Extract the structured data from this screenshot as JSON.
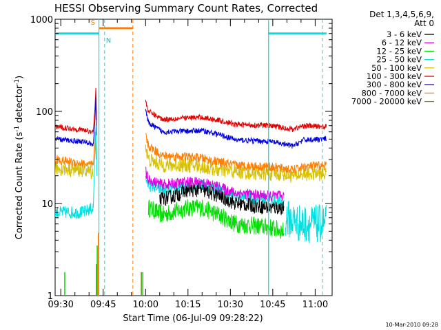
{
  "chart_data": {
    "type": "line",
    "title": "HESSI Observing Summary Count Rates, Corrected",
    "xlabel": "Start Time (06-Jul-09 09:28:22)",
    "ylabel": "Corrected Count Rate (s",
    "ylabel_sup1": "-1",
    "ylabel_mid": " detector",
    "ylabel_sup2": "-1",
    "ylabel_end": ")",
    "yscale": "log",
    "ylim": [
      1,
      1000
    ],
    "xlim_minutes": [
      -2,
      96
    ],
    "xticks": [
      {
        "label": "09:30",
        "minutes": 0
      },
      {
        "label": "09:45",
        "minutes": 15
      },
      {
        "label": "10:00",
        "minutes": 30
      },
      {
        "label": "10:15",
        "minutes": 45
      },
      {
        "label": "10:30",
        "minutes": 60
      },
      {
        "label": "10:45",
        "minutes": 75
      },
      {
        "label": "11:00",
        "minutes": 90
      }
    ],
    "yticks": [
      {
        "label": "1",
        "value": 1
      },
      {
        "label": "10",
        "value": 10
      },
      {
        "label": "100",
        "value": 100
      },
      {
        "label": "1000",
        "value": 1000
      }
    ],
    "legend": {
      "placement": "right",
      "header_line1": "Det 1,3,4,5,6,9,",
      "header_line2": "Att 0"
    },
    "series": [
      {
        "name": "3 - 6 keV",
        "color": "#000000"
      },
      {
        "name": "6 - 12 keV",
        "color": "#e000e0"
      },
      {
        "name": "12 - 25 keV",
        "color": "#00e000"
      },
      {
        "name": "25 - 50 keV",
        "color": "#00e0e0"
      },
      {
        "name": "50 - 100 keV",
        "color": "#d8c000"
      },
      {
        "name": "100 - 300 keV",
        "color": "#e00000"
      },
      {
        "name": "300 - 800 keV",
        "color": "#0000e0"
      },
      {
        "name": "800 - 7000 keV",
        "color": "#ff8000"
      },
      {
        "name": "7000 - 20000 keV",
        "color": "#808000"
      }
    ],
    "profiles": {
      "red": {
        "pre": [
          [
            -2,
            68
          ],
          [
            8,
            63
          ],
          [
            11.5,
            60
          ]
        ],
        "post": [
          [
            30,
            130
          ],
          [
            31,
            100
          ],
          [
            36,
            82
          ],
          [
            45,
            85
          ],
          [
            50,
            86
          ],
          [
            56,
            80
          ],
          [
            62,
            72
          ],
          [
            74,
            70
          ],
          [
            79,
            66
          ],
          [
            82,
            64
          ],
          [
            86,
            70
          ],
          [
            94,
            68
          ]
        ]
      },
      "blue": {
        "pre": [
          [
            -2,
            50
          ],
          [
            8,
            47
          ],
          [
            11.5,
            44
          ]
        ],
        "post": [
          [
            30,
            105
          ],
          [
            31,
            75
          ],
          [
            36,
            60
          ],
          [
            45,
            61
          ],
          [
            50,
            62
          ],
          [
            56,
            56
          ],
          [
            62,
            49
          ],
          [
            74,
            47
          ],
          [
            79,
            44
          ],
          [
            82,
            42
          ],
          [
            86,
            49
          ],
          [
            94,
            50
          ]
        ]
      },
      "orange": {
        "pre": [
          [
            -2,
            30
          ],
          [
            8,
            27
          ],
          [
            11.5,
            26
          ]
        ],
        "post": [
          [
            30,
            55
          ],
          [
            31,
            42
          ],
          [
            36,
            33
          ],
          [
            45,
            32
          ],
          [
            50,
            31
          ],
          [
            56,
            28
          ],
          [
            62,
            26
          ],
          [
            74,
            25
          ],
          [
            79,
            24
          ],
          [
            82,
            23
          ],
          [
            86,
            25
          ],
          [
            94,
            26
          ]
        ]
      },
      "yellow": {
        "pre": [
          [
            -2,
            24
          ],
          [
            8,
            23
          ],
          [
            11.5,
            22
          ]
        ],
        "post": [
          [
            30,
            42
          ],
          [
            31,
            30
          ],
          [
            36,
            26
          ],
          [
            45,
            26
          ],
          [
            50,
            25
          ],
          [
            56,
            23
          ],
          [
            62,
            22
          ],
          [
            74,
            21
          ],
          [
            79,
            21
          ],
          [
            82,
            20
          ],
          [
            86,
            21
          ],
          [
            94,
            21
          ]
        ]
      },
      "magenta": {
        "post": [
          [
            30,
            22
          ],
          [
            31,
            18
          ],
          [
            36,
            16
          ],
          [
            45,
            17
          ],
          [
            50,
            17
          ],
          [
            56,
            15
          ],
          [
            62,
            13
          ],
          [
            74,
            12
          ],
          [
            79,
            12
          ]
        ]
      },
      "cyan": {
        "pre": [
          [
            -2,
            8
          ],
          [
            8,
            8
          ],
          [
            11.5,
            9
          ]
        ],
        "post": [
          [
            30,
            19
          ],
          [
            31,
            16
          ],
          [
            36,
            14
          ],
          [
            45,
            15
          ],
          [
            50,
            16
          ],
          [
            56,
            14
          ],
          [
            62,
            12
          ],
          [
            74,
            11
          ],
          [
            79,
            10
          ]
        ],
        "late": [
          [
            79.5,
            7
          ],
          [
            85,
            6
          ],
          [
            94,
            6
          ]
        ]
      },
      "black": {
        "post": [
          [
            35,
            11
          ],
          [
            40,
            12
          ],
          [
            45,
            14
          ],
          [
            50,
            14
          ],
          [
            56,
            12
          ],
          [
            62,
            10
          ],
          [
            74,
            9
          ],
          [
            79,
            9
          ]
        ]
      },
      "green": {
        "post": [
          [
            31,
            9
          ],
          [
            36,
            7.5
          ],
          [
            45,
            9
          ],
          [
            50,
            9
          ],
          [
            56,
            7.5
          ],
          [
            62,
            6
          ],
          [
            74,
            5.5
          ],
          [
            79,
            5
          ]
        ]
      }
    },
    "annotations": {
      "attenuator_bar": {
        "value": 700,
        "segments": [
          [
            -2,
            13.5
          ],
          [
            73.5,
            94
          ]
        ]
      },
      "saa_bar": {
        "label": "S",
        "value": 800,
        "start": 13.5,
        "end": 25.5
      },
      "night_label": "N",
      "cyan_dashed_minutes": [
        15.5,
        92.5
      ],
      "cyan_solid_minutes": [
        73.5
      ],
      "orange_dashed_minutes": [
        25.5
      ]
    },
    "grid": false
  },
  "footer": {
    "timestamp": "10-Mar-2010 09:28"
  }
}
